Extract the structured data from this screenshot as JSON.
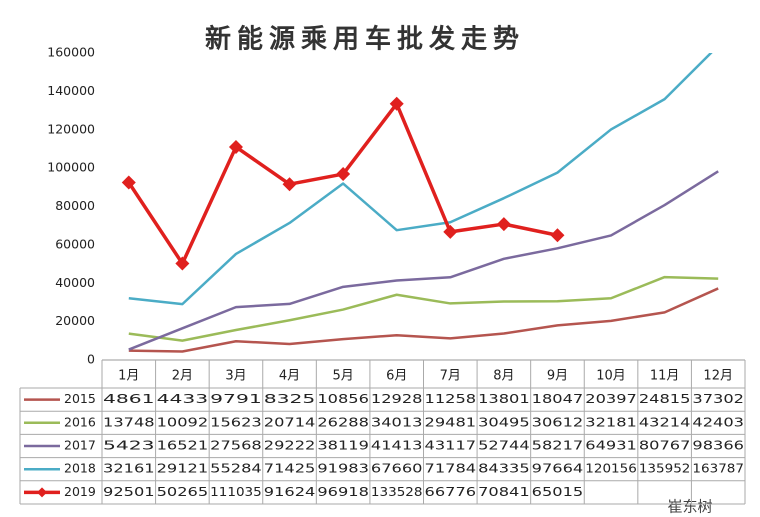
{
  "chart_data": {
    "type": "line",
    "title": "新能源乘用车批发走势",
    "categories": [
      "1月",
      "2月",
      "3月",
      "4月",
      "5月",
      "6月",
      "7月",
      "8月",
      "9月",
      "10月",
      "11月",
      "12月"
    ],
    "series": [
      {
        "name": "2015",
        "color": "#b5554f",
        "values": [
          4861,
          4433,
          9791,
          8325,
          10856,
          12928,
          11258,
          13801,
          18047,
          20397,
          24815,
          37302
        ]
      },
      {
        "name": "2016",
        "color": "#9bbb59",
        "values": [
          13748,
          10092,
          15623,
          20714,
          26288,
          34013,
          29481,
          30495,
          30612,
          32181,
          43214,
          42403
        ]
      },
      {
        "name": "2017",
        "color": "#7b6a9e",
        "values": [
          5423,
          16521,
          27568,
          29222,
          38119,
          41413,
          43117,
          52744,
          58217,
          64931,
          80767,
          98366
        ]
      },
      {
        "name": "2018",
        "color": "#4bacc6",
        "values": [
          32161,
          29121,
          55284,
          71425,
          91983,
          67660,
          71784,
          84335,
          97664,
          120156,
          135952,
          163787
        ]
      },
      {
        "name": "2019",
        "color": "#e0201e",
        "marker": "diamond",
        "values": [
          92501,
          50265,
          111035,
          91624,
          96918,
          133528,
          66776,
          70841,
          65015,
          null,
          null,
          null
        ]
      }
    ],
    "ylim": [
      0,
      160000
    ],
    "yticks": [
      0,
      20000,
      40000,
      60000,
      80000,
      100000,
      120000,
      140000,
      160000
    ],
    "grid": false,
    "watermark": "崔东树"
  }
}
